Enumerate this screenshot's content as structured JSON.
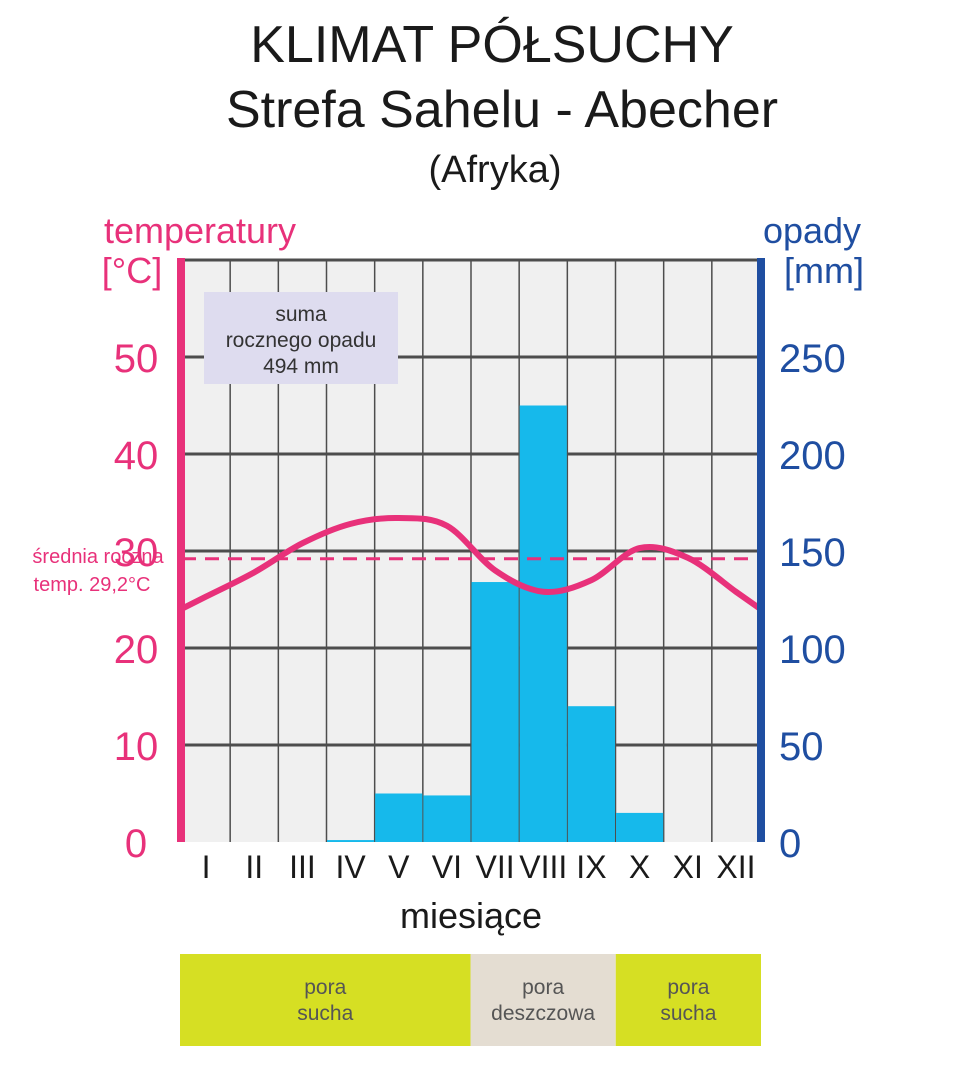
{
  "chart_data": {
    "type": "bar+line",
    "title": "KLIMAT PÓŁSUCHY",
    "subtitle": "Strefa Sahelu - Abecher",
    "region": "(Afryka)",
    "categories": [
      "I",
      "II",
      "III",
      "IV",
      "V",
      "VI",
      "VII",
      "VIII",
      "IX",
      "X",
      "XI",
      "XII"
    ],
    "xlabel": "miesiące",
    "y_left": {
      "label_line1": "temperatury",
      "label_line2": "[°C]",
      "ticks": [
        "0",
        "10",
        "20",
        "30",
        "40",
        "50"
      ],
      "range": [
        0,
        60
      ]
    },
    "y_right": {
      "label_line1": "opady",
      "label_line2": "[mm]",
      "ticks": [
        "0",
        "50",
        "100",
        "150",
        "200",
        "250"
      ],
      "range": [
        0,
        300
      ]
    },
    "series": [
      {
        "kind": "bar",
        "axis": "right",
        "values": [
          0,
          0,
          0,
          1,
          25,
          24,
          134,
          225,
          70,
          15,
          0,
          0
        ]
      },
      {
        "kind": "line",
        "axis": "left",
        "values": [
          25.3,
          27.8,
          30.8,
          32.8,
          33.4,
          32.6,
          28.0,
          25.8,
          27.0,
          30.3,
          29.3,
          25.8
        ]
      }
    ],
    "annual_mean": {
      "value": 29.2,
      "label_line1": "średnia roczna",
      "label_line2": "temp. 29,2°C"
    },
    "annotation": {
      "line1": "suma",
      "line2": "rocznego opadu",
      "line3": "494 mm"
    },
    "seasons": [
      {
        "line1": "pora",
        "line2": "sucha",
        "from": 1,
        "to": 6,
        "color": "#d6df23"
      },
      {
        "line1": "pora",
        "line2": "deszczowa",
        "from": 7,
        "to": 9,
        "color": "#e4ddd2"
      },
      {
        "line1": "pora",
        "line2": "sucha",
        "from": 10,
        "to": 12,
        "color": "#d6df23"
      }
    ],
    "colors": {
      "temperature": "#e8317a",
      "precipitation": "#16b9eb",
      "precip_axis": "#1f4ea1",
      "plot_bg": "#f0f0f0",
      "grid": "#4d4d4d",
      "annotation_bg": "#dedcef"
    }
  }
}
